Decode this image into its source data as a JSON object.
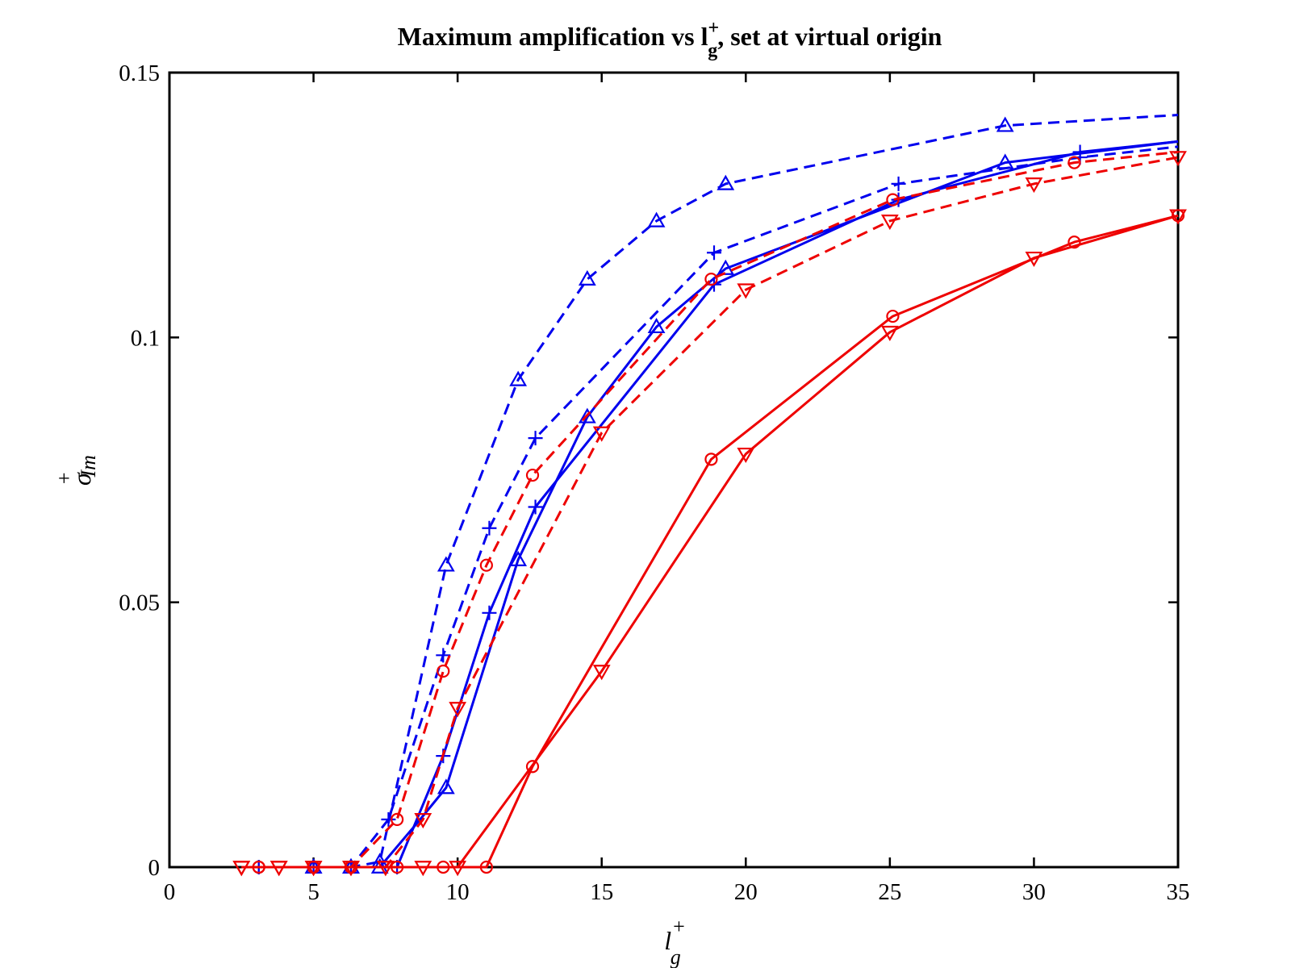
{
  "chart_data": {
    "type": "line",
    "title": {
      "main": "Maximum amplification vs l",
      "sup": "+",
      "sub": "g",
      "rest": ", set at virtual origin"
    },
    "xlabel": {
      "base": "l",
      "sup": "+",
      "sub": "g"
    },
    "ylabel": {
      "base": "σ",
      "sup": "+",
      "sub": "Im"
    },
    "xlim": [
      0,
      35
    ],
    "ylim": [
      0,
      0.15
    ],
    "x_ticks": [
      0,
      5,
      10,
      15,
      20,
      25,
      30,
      35
    ],
    "x_tick_labels": [
      "0",
      "5",
      "10",
      "15",
      "20",
      "25",
      "30",
      "35"
    ],
    "y_ticks": [
      0,
      0.05,
      0.1,
      0.15
    ],
    "y_tick_labels": [
      "0",
      "0.05",
      "0.1",
      "0.15"
    ],
    "grid": false,
    "colors": {
      "blue": "#0000ee",
      "red": "#ee0000"
    },
    "series": [
      {
        "color": "blue",
        "linestyle": "dashed",
        "marker": "triangle-up",
        "x": [
          5,
          6.3,
          7.3,
          9.6,
          12.1,
          14.5,
          16.9,
          19.3,
          29,
          35
        ],
        "y": [
          0,
          0,
          0.001,
          0.057,
          0.092,
          0.111,
          0.122,
          0.129,
          0.14,
          0.142
        ],
        "marker_idx": [
          0,
          1,
          2,
          3,
          4,
          5,
          6,
          7,
          8
        ]
      },
      {
        "color": "blue",
        "linestyle": "dashed",
        "marker": "plus",
        "x": [
          3.1,
          5,
          6.3,
          7.6,
          9.5,
          11.1,
          12.7,
          18.9,
          25.3,
          31.6,
          35
        ],
        "y": [
          0,
          0,
          0,
          0.009,
          0.04,
          0.064,
          0.081,
          0.116,
          0.129,
          0.134,
          0.136
        ],
        "marker_idx": [
          0,
          1,
          2,
          3,
          4,
          5,
          6,
          7,
          8,
          9
        ]
      },
      {
        "color": "blue",
        "linestyle": "solid",
        "marker": "triangle-up",
        "x": [
          5,
          6.3,
          7.3,
          8.7,
          9.6,
          12.1,
          14.5,
          16.9,
          19.3,
          29,
          35
        ],
        "y": [
          0,
          0,
          0,
          0.009,
          0.015,
          0.058,
          0.085,
          0.102,
          0.113,
          0.133,
          0.137
        ],
        "marker_idx": [
          0,
          1,
          2,
          4,
          5,
          6,
          7,
          8,
          9
        ]
      },
      {
        "color": "blue",
        "linestyle": "solid",
        "marker": "plus",
        "x": [
          3.1,
          5,
          6.3,
          7.9,
          9.5,
          11.1,
          12.7,
          18.9,
          25.3,
          31.6,
          35
        ],
        "y": [
          0,
          0,
          0,
          0,
          0.021,
          0.048,
          0.068,
          0.11,
          0.126,
          0.135,
          0.137
        ],
        "marker_idx": [
          0,
          1,
          2,
          3,
          4,
          5,
          6,
          7,
          8,
          9
        ]
      },
      {
        "color": "red",
        "linestyle": "dashed",
        "marker": "circle",
        "x": [
          3.1,
          5,
          6.3,
          7.9,
          9.5,
          11.0,
          12.6,
          18.8,
          25.1,
          31.4,
          35
        ],
        "y": [
          0,
          0,
          0,
          0.009,
          0.037,
          0.057,
          0.074,
          0.111,
          0.126,
          0.133,
          0.135
        ],
        "marker_idx": [
          0,
          1,
          2,
          3,
          4,
          5,
          6,
          7,
          8,
          9
        ]
      },
      {
        "color": "red",
        "linestyle": "dashed",
        "marker": "triangle-down",
        "x": [
          2.5,
          3.8,
          5,
          6.3,
          7.5,
          8.8,
          10.0,
          15.0,
          20.0,
          25.0,
          30.0,
          35.0
        ],
        "y": [
          0,
          0,
          0,
          0,
          0,
          0.009,
          0.03,
          0.082,
          0.109,
          0.122,
          0.129,
          0.134
        ],
        "marker_idx": [
          0,
          1,
          2,
          3,
          4,
          5,
          6,
          7,
          8,
          9,
          10,
          11
        ]
      },
      {
        "color": "red",
        "linestyle": "solid",
        "marker": "circle",
        "x": [
          3.1,
          5,
          6.3,
          7.9,
          9.5,
          11.0,
          12.6,
          18.8,
          25.1,
          31.4,
          35
        ],
        "y": [
          0,
          0,
          0,
          0,
          0,
          0,
          0.019,
          0.077,
          0.104,
          0.118,
          0.123
        ],
        "marker_idx": [
          0,
          1,
          2,
          3,
          4,
          5,
          6,
          7,
          8,
          9,
          10
        ]
      },
      {
        "color": "red",
        "linestyle": "solid",
        "marker": "triangle-down",
        "x": [
          2.5,
          3.8,
          5,
          6.3,
          7.5,
          8.8,
          10.0,
          15.0,
          20.0,
          25.0,
          30.0,
          35.0
        ],
        "y": [
          0,
          0,
          0,
          0,
          0,
          0,
          0,
          0.037,
          0.078,
          0.101,
          0.115,
          0.123
        ],
        "marker_idx": [
          0,
          1,
          2,
          3,
          4,
          5,
          6,
          7,
          8,
          9,
          10,
          11
        ]
      }
    ]
  }
}
